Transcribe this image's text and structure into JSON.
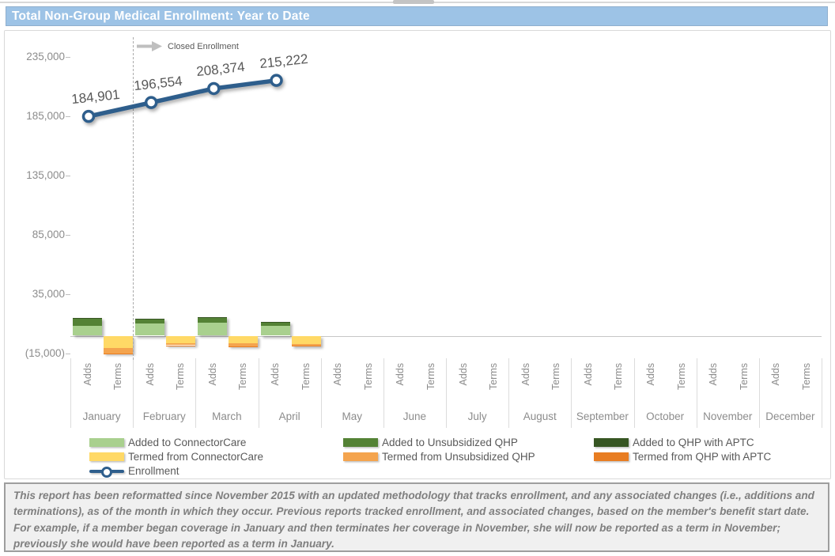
{
  "header": {
    "title": "Total Non-Group Medical Enrollment: Year to Date",
    "bar_color": "#9DC3E6"
  },
  "chart_data": {
    "type": "bar",
    "subtype": "stacked-bars-with-line",
    "title": "Total Non-Group Medical Enrollment: Year to Date",
    "annotation": "Closed Enrollment",
    "months": [
      "January",
      "February",
      "March",
      "April",
      "May",
      "June",
      "July",
      "August",
      "September",
      "October",
      "November",
      "December"
    ],
    "sub_categories": [
      "Adds",
      "Terms"
    ],
    "y_axis": {
      "min": -15000,
      "max": 235000,
      "step": 50000,
      "tick_labels": [
        "235,000",
        "185,000",
        "135,000",
        "85,000",
        "35,000",
        "(15,000)"
      ]
    },
    "enrollment_line": {
      "name": "Enrollment",
      "color": "#2E5E8C",
      "months_with_data": [
        "January",
        "February",
        "March",
        "April"
      ],
      "values": [
        184901,
        196554,
        208374,
        215222
      ],
      "labels": [
        "184,901",
        "196,554",
        "208,374",
        "215,222"
      ]
    },
    "adds_series": [
      {
        "name": "Added to ConnectorCare",
        "color": "#A9D08E",
        "values": [
          8500,
          10200,
          10800,
          8300,
          0,
          0,
          0,
          0,
          0,
          0,
          0,
          0
        ]
      },
      {
        "name": "Added to Unsubsidized QHP",
        "color": "#548235",
        "values": [
          5800,
          3500,
          4000,
          3000,
          0,
          0,
          0,
          0,
          0,
          0,
          0,
          0
        ]
      },
      {
        "name": "Added to QHP with APTC",
        "color": "#375623",
        "values": [
          800,
          800,
          900,
          700,
          0,
          0,
          0,
          0,
          0,
          0,
          0,
          0
        ]
      }
    ],
    "terms_series": [
      {
        "name": "Termed from ConnectorCare",
        "color": "#FFD966",
        "values": [
          -10500,
          -6200,
          -6500,
          -6800,
          0,
          0,
          0,
          0,
          0,
          0,
          0,
          0
        ]
      },
      {
        "name": "Termed from Unsubsidized QHP",
        "color": "#F4A44E",
        "values": [
          -4200,
          -1800,
          -2300,
          -1700,
          0,
          0,
          0,
          0,
          0,
          0,
          0,
          0
        ]
      },
      {
        "name": "Termed from QHP with APTC",
        "color": "#E87D22",
        "values": [
          -400,
          -200,
          -300,
          -200,
          0,
          0,
          0,
          0,
          0,
          0,
          0,
          0
        ]
      }
    ],
    "legend_position": "bottom",
    "grid": "zero-line-only"
  },
  "legend": {
    "columns": [
      [
        {
          "label": "Added to ConnectorCare",
          "color": "#A9D08E",
          "type": "bar"
        },
        {
          "label": "Termed from ConnectorCare",
          "color": "#FFD966",
          "type": "bar"
        },
        {
          "label": "Enrollment",
          "color": "#2E5E8C",
          "type": "line"
        }
      ],
      [
        {
          "label": "Added to Unsubsidized QHP",
          "color": "#548235",
          "type": "bar"
        },
        {
          "label": "Termed from Unsubsidized QHP",
          "color": "#F4A44E",
          "type": "bar"
        }
      ],
      [
        {
          "label": "Added to QHP with APTC",
          "color": "#375623",
          "type": "bar"
        },
        {
          "label": "Termed from QHP with APTC",
          "color": "#E87D22",
          "type": "bar"
        }
      ]
    ]
  },
  "footer": {
    "text": "This report has been reformatted since November 2015 with an updated methodology that tracks enrollment, and any associated changes (i.e., additions and terminations), as of the month in which they occur.  Previous reports tracked enrollment, and associated changes, based on the member's benefit start date.  For example, if a member began coverage in January and then terminates her coverage in November, she will now be reported as a term in November; previously she would have been reported as a term in January."
  }
}
